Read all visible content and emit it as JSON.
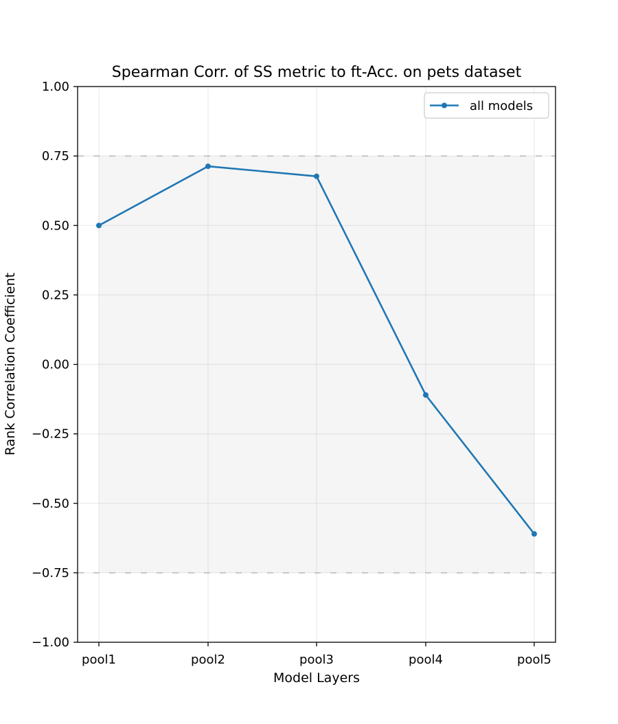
{
  "chart_data": {
    "type": "line",
    "title": "Spearman Corr. of SS metric to ft-Acc. on pets dataset",
    "xlabel": "Model Layers",
    "ylabel": "Rank Correlation Coefficient",
    "categories": [
      "pool1",
      "pool2",
      "pool3",
      "pool4",
      "pool5"
    ],
    "series": [
      {
        "name": "all models",
        "values": [
          0.5,
          0.713,
          0.677,
          -0.11,
          -0.61
        ],
        "color": "#1f77b4"
      }
    ],
    "ylim": [
      -1.0,
      1.0
    ],
    "yticks": [
      1.0,
      0.75,
      0.5,
      0.25,
      0.0,
      -0.25,
      -0.5,
      -0.75,
      -1.0
    ],
    "ytick_labels": [
      "1.00",
      "0.75",
      "0.50",
      "0.25",
      "0.00",
      "−0.25",
      "−0.50",
      "−0.75",
      "−1.00"
    ],
    "shaded_band": {
      "y_range": [
        -0.75,
        0.75
      ],
      "color": "#f5f5f5",
      "border_style": "dashed",
      "border_color": "#cccccc"
    },
    "grid": true,
    "legend_position": "top-right"
  }
}
